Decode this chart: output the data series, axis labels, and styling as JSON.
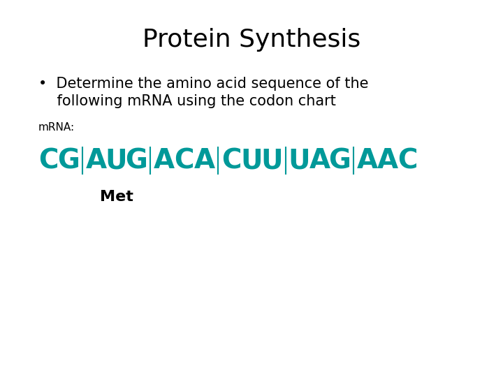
{
  "title": "Protein Synthesis",
  "title_fontsize": 26,
  "title_color": "#000000",
  "bullet_line1": "•  Determine the amino acid sequence of the",
  "bullet_line2": "    following mRNA using the codon chart",
  "bullet_fontsize": 15,
  "mrna_label": "mRNA:",
  "mrna_label_fontsize": 11,
  "mrna_label_color": "#000000",
  "background_color": "#ffffff",
  "teal_color": "#009999",
  "sequence_fontsize": 28,
  "met_label": "Met",
  "met_fontsize": 16,
  "met_color": "#000000"
}
